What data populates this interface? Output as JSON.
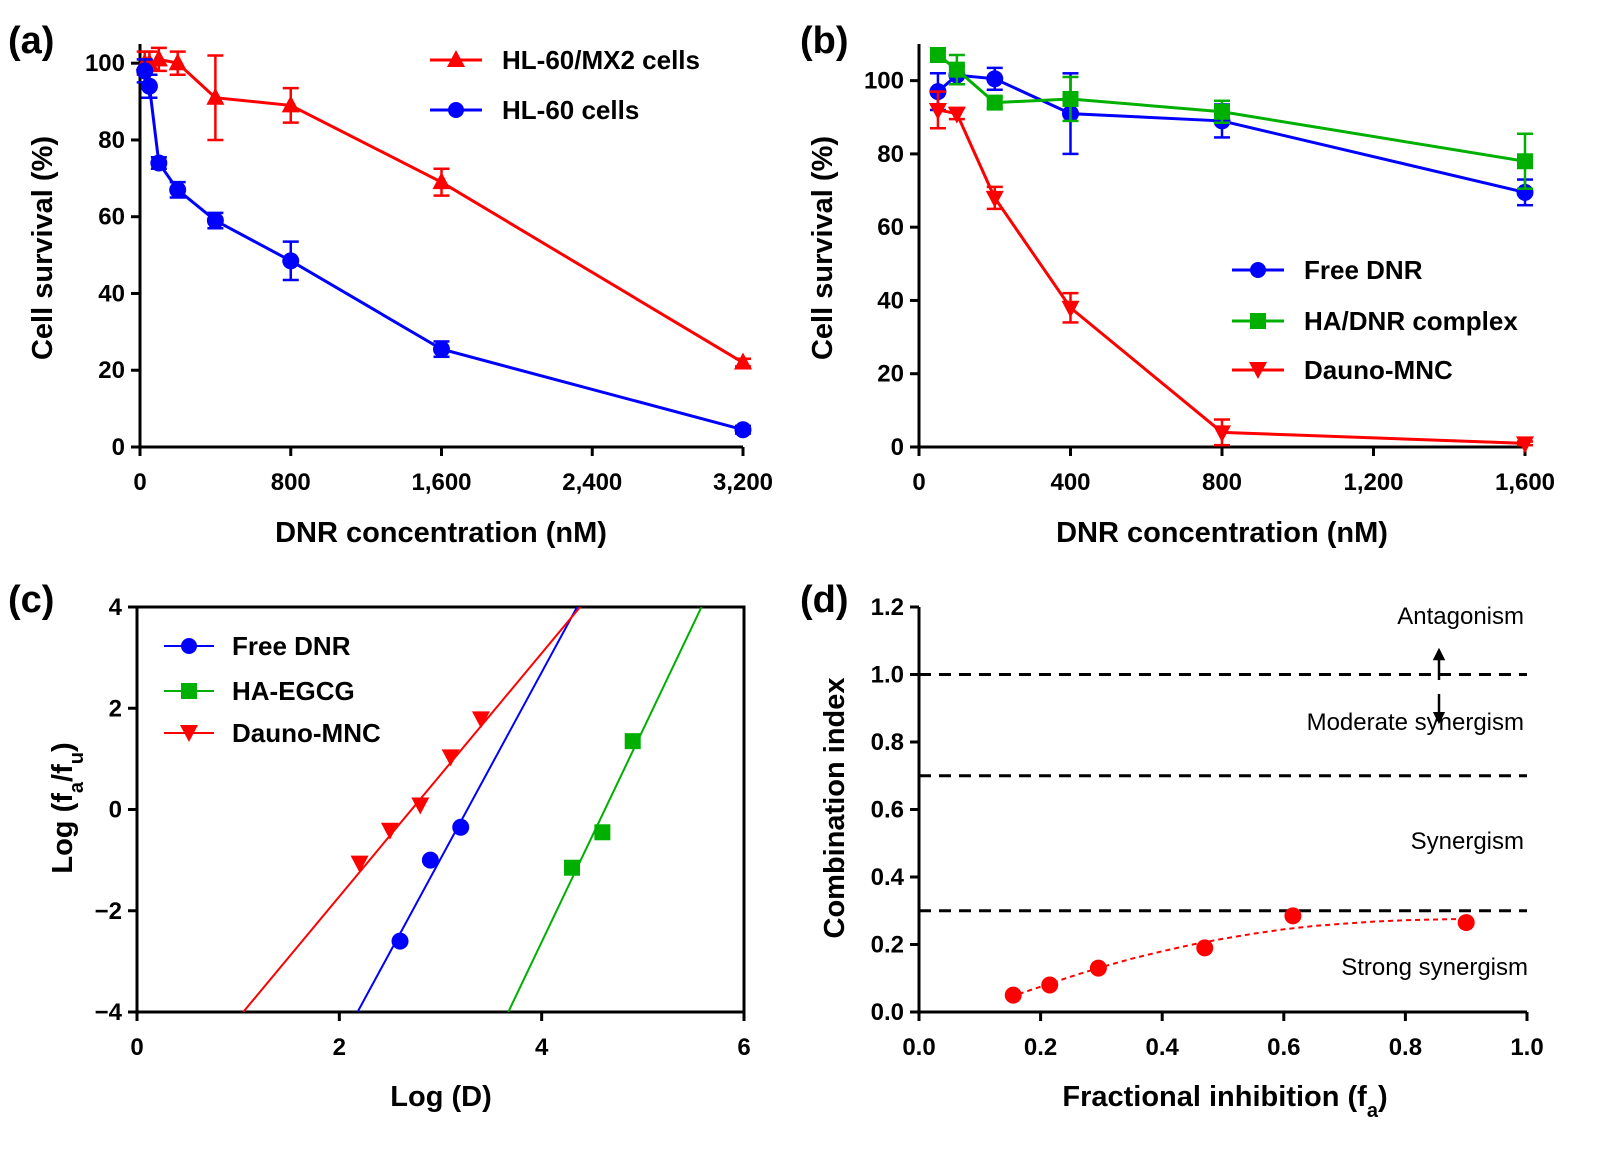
{
  "chart_data": [
    {
      "panel": "(a)",
      "type": "line",
      "xlabel": "DNR concentration (nM)",
      "ylabel": "Cell survival (%)",
      "xlim": [
        0,
        3200
      ],
      "ylim": [
        0,
        105
      ],
      "xticks": [
        0,
        800,
        1600,
        2400,
        3200
      ],
      "xtick_labels": [
        "0",
        "800",
        "1,600",
        "2,400",
        "3,200"
      ],
      "yticks": [
        0,
        20,
        40,
        60,
        80,
        100
      ],
      "ytick_labels": [
        "0",
        "20",
        "40",
        "60",
        "80",
        "100"
      ],
      "legend_position": "top-right",
      "series": [
        {
          "name": "HL-60/MX2 cells",
          "color": "#ff0000",
          "marker": "triangle-up",
          "x": [
            25,
            50,
            100,
            200,
            400,
            800,
            1600,
            3200
          ],
          "y": [
            100,
            100,
            101,
            100,
            91,
            89,
            69,
            22
          ],
          "err": [
            3,
            3,
            3,
            3,
            11,
            4.5,
            3.5,
            1
          ]
        },
        {
          "name": "HL-60 cells",
          "color": "#0000ff",
          "marker": "circle",
          "x": [
            25,
            50,
            100,
            200,
            400,
            800,
            1600,
            3200
          ],
          "y": [
            98,
            94,
            74,
            67,
            59,
            48.5,
            25.5,
            4.5
          ],
          "err": [
            3,
            3,
            1.5,
            2,
            2,
            5,
            2,
            1
          ]
        }
      ]
    },
    {
      "panel": "(b)",
      "type": "line",
      "xlabel": "DNR concentration (nM)",
      "ylabel": "Cell survival (%)",
      "xlim": [
        0,
        1600
      ],
      "ylim": [
        0,
        110
      ],
      "xticks": [
        0,
        400,
        800,
        1200,
        1600
      ],
      "xtick_labels": [
        "0",
        "400",
        "800",
        "1,200",
        "1,600"
      ],
      "yticks": [
        0,
        20,
        40,
        60,
        80,
        100
      ],
      "ytick_labels": [
        "0",
        "20",
        "40",
        "60",
        "80",
        "100"
      ],
      "legend_position": "bottom-right",
      "series": [
        {
          "name": "Free DNR",
          "color": "#0000ff",
          "marker": "circle",
          "x": [
            50,
            100,
            200,
            400,
            800,
            1600
          ],
          "y": [
            97,
            101.5,
            100.5,
            91,
            89,
            69.5
          ],
          "err": [
            5,
            2.5,
            3,
            11,
            4.5,
            3.5
          ]
        },
        {
          "name": "HA/DNR complex",
          "color": "#00b000",
          "marker": "square",
          "x": [
            50,
            100,
            200,
            400,
            800,
            1600
          ],
          "y": [
            107,
            103,
            94,
            95,
            91.5,
            78
          ],
          "err": [
            1,
            4,
            1.5,
            6,
            3,
            7.5
          ]
        },
        {
          "name": "Dauno-MNC",
          "color": "#ff0000",
          "marker": "triangle-down",
          "x": [
            50,
            100,
            200,
            400,
            800,
            1600
          ],
          "y": [
            92,
            91,
            68,
            38,
            4,
            1
          ],
          "err": [
            5,
            1.5,
            3,
            4,
            3.5,
            0.5
          ]
        }
      ]
    },
    {
      "panel": "(c)",
      "type": "scatter",
      "xlabel": "Log (D)",
      "ylabel": "Log (fa/fu)",
      "xlim": [
        0,
        6
      ],
      "ylim": [
        -4,
        4
      ],
      "xticks": [
        0,
        2,
        4,
        6
      ],
      "xtick_labels": [
        "0",
        "2",
        "4",
        "6"
      ],
      "yticks": [
        -4,
        -2,
        0,
        2,
        4
      ],
      "ytick_labels": [
        "−4",
        "−2",
        "0",
        "2",
        "4"
      ],
      "legend_position": "top-left",
      "series": [
        {
          "name": "Free DNR",
          "color": "#0000ff",
          "marker": "circle",
          "x": [
            2.6,
            2.9,
            3.2
          ],
          "y": [
            -2.6,
            -1.0,
            -0.35
          ],
          "fit_line": {
            "x": [
              2.18,
              4.35
            ],
            "y": [
              -4,
              4
            ]
          }
        },
        {
          "name": "HA-EGCG",
          "color": "#00b000",
          "marker": "square",
          "x": [
            4.3,
            4.6,
            4.9
          ],
          "y": [
            -1.15,
            -0.45,
            1.35
          ],
          "fit_line": {
            "x": [
              3.67,
              5.58
            ],
            "y": [
              -4,
              4
            ]
          }
        },
        {
          "name": "Dauno-MNC",
          "color": "#ff0000",
          "marker": "triangle-down",
          "x": [
            2.2,
            2.5,
            2.8,
            3.1,
            3.4
          ],
          "y": [
            -1.05,
            -0.4,
            0.1,
            1.05,
            1.8
          ],
          "fit_line": {
            "x": [
              1.05,
              4.38
            ],
            "y": [
              -4,
              4
            ]
          }
        }
      ]
    },
    {
      "panel": "(d)",
      "type": "scatter",
      "xlabel": "Fractional inhibition (fa)",
      "ylabel": "Combination index",
      "xlim": [
        0,
        1
      ],
      "ylim": [
        0,
        1.2
      ],
      "xticks": [
        0,
        0.2,
        0.4,
        0.6,
        0.8,
        1.0
      ],
      "xtick_labels": [
        "0.0",
        "0.2",
        "0.4",
        "0.6",
        "0.8",
        "1.0"
      ],
      "yticks": [
        0,
        0.2,
        0.4,
        0.6,
        0.8,
        1.0,
        1.2
      ],
      "ytick_labels": [
        "0.0",
        "0.2",
        "0.4",
        "0.6",
        "0.8",
        "1.0",
        "1.2"
      ],
      "reference_lines": [
        1.0,
        0.7,
        0.3
      ],
      "region_labels": [
        "Antagonism",
        "Moderate synergism",
        "Synergism",
        "Strong synergism"
      ],
      "series": [
        {
          "name": "Dauno-MNC",
          "color": "#ff0000",
          "marker": "circle",
          "x": [
            0.155,
            0.215,
            0.295,
            0.47,
            0.615,
            0.9
          ],
          "y": [
            0.05,
            0.08,
            0.13,
            0.19,
            0.285,
            0.265
          ]
        }
      ],
      "fit_curve": {
        "color": "#ff0000",
        "x": [
          0.15,
          0.2,
          0.25,
          0.3,
          0.35,
          0.4,
          0.45,
          0.5,
          0.55,
          0.6,
          0.65,
          0.7,
          0.75,
          0.8,
          0.85,
          0.9
        ],
        "y": [
          0.045,
          0.075,
          0.105,
          0.133,
          0.158,
          0.18,
          0.2,
          0.217,
          0.232,
          0.245,
          0.255,
          0.262,
          0.268,
          0.272,
          0.274,
          0.276
        ]
      }
    }
  ]
}
